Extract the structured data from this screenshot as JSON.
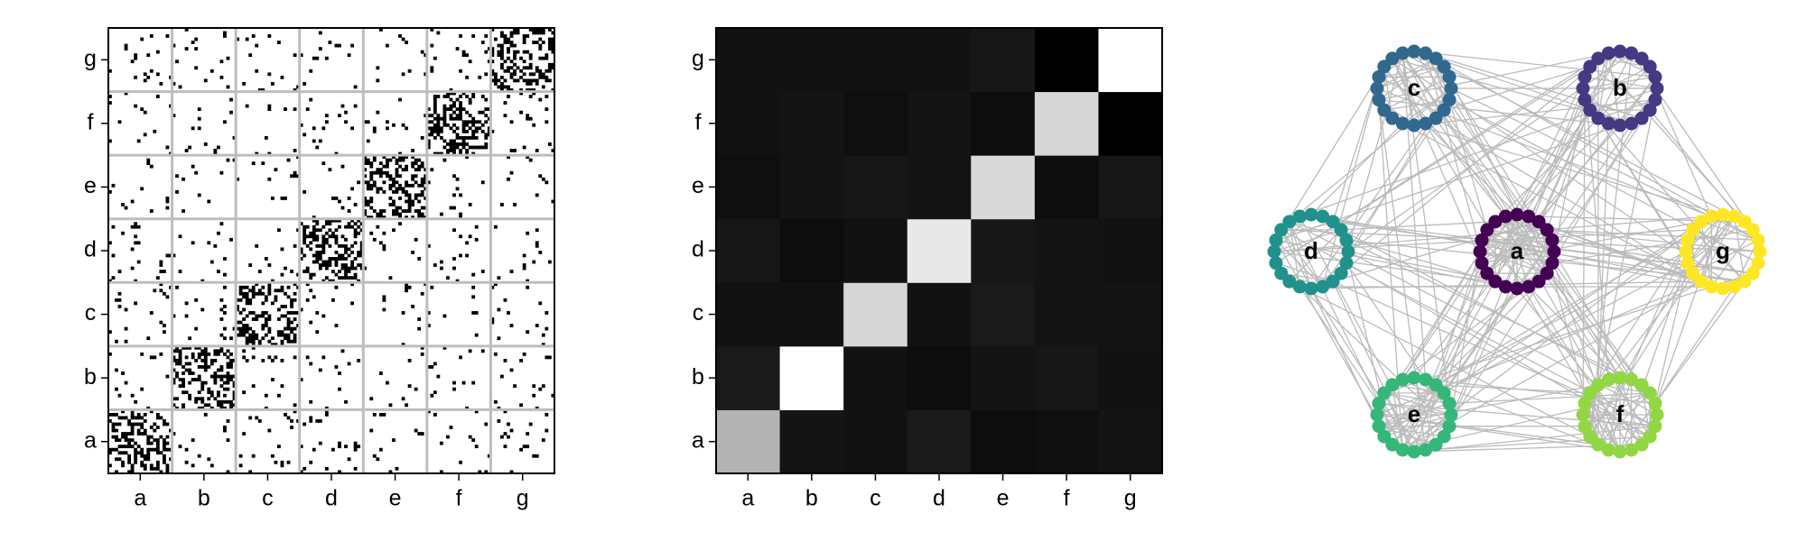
{
  "chart_data": [
    {
      "type": "heatmap",
      "subtype": "adjacency-matrix",
      "title": "",
      "xlabel": "",
      "ylabel": "",
      "categories": [
        "a",
        "b",
        "c",
        "d",
        "e",
        "f",
        "g"
      ],
      "nodes_per_block": 20,
      "p_within": 0.4,
      "p_between": 0.04,
      "colors": {
        "edge": "#000000",
        "empty": "#ffffff",
        "grid": "#bdbdbd"
      },
      "grid": true
    },
    {
      "type": "heatmap",
      "title": "",
      "xlabel": "",
      "ylabel": "",
      "categories": [
        "a",
        "b",
        "c",
        "d",
        "e",
        "f",
        "g"
      ],
      "colormap": "gray",
      "values": [
        [
          0.7,
          0.08,
          0.07,
          0.1,
          0.05,
          0.06,
          0.08
        ],
        [
          0.1,
          1.0,
          0.07,
          0.05,
          0.08,
          0.09,
          0.07
        ],
        [
          0.07,
          0.07,
          0.84,
          0.07,
          0.1,
          0.08,
          0.08
        ],
        [
          0.09,
          0.05,
          0.07,
          0.91,
          0.09,
          0.08,
          0.07
        ],
        [
          0.06,
          0.08,
          0.09,
          0.08,
          0.85,
          0.05,
          0.09
        ],
        [
          0.07,
          0.08,
          0.06,
          0.08,
          0.05,
          0.84,
          0.0
        ],
        [
          0.07,
          0.07,
          0.07,
          0.07,
          0.09,
          0.0,
          1.0
        ]
      ]
    },
    {
      "type": "network",
      "title": "",
      "communities": [
        {
          "label": "a",
          "color": "#440154"
        },
        {
          "label": "b",
          "color": "#443983"
        },
        {
          "label": "c",
          "color": "#31688e"
        },
        {
          "label": "d",
          "color": "#21918c"
        },
        {
          "label": "e",
          "color": "#35b779"
        },
        {
          "label": "f",
          "color": "#90d743"
        },
        {
          "label": "g",
          "color": "#fde725"
        }
      ],
      "nodes_per_community": 20,
      "edge_color": "#bbbbbb",
      "node_label_color": "#000000"
    }
  ]
}
